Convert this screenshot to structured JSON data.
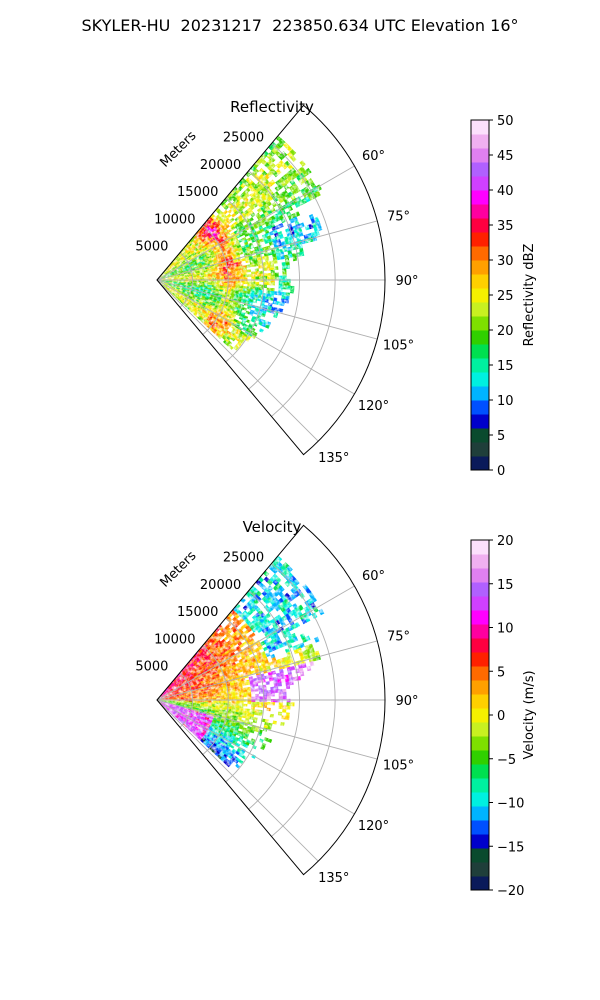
{
  "figure": {
    "title": "SKYLER-HU  20231217  223850.634 UTC Elevation 16°"
  },
  "chart_data": [
    {
      "type": "heatmap",
      "projection": "polar-sector",
      "title": "Reflectivity",
      "radial_label": "Meters",
      "radial_ticks": [
        5000,
        10000,
        15000,
        20000,
        25000
      ],
      "r_max": 32000,
      "angle_range_deg": [
        40,
        140
      ],
      "angle_ticks": [
        "60°",
        "75°",
        "90°",
        "105°",
        "120°",
        "135°"
      ],
      "angle_tick_values": [
        60,
        75,
        90,
        105,
        120,
        135
      ],
      "data_extent_deg": [
        40,
        132
      ],
      "data_extent_m": [
        0,
        26000
      ],
      "colorbar": {
        "label": "Reflectivity dBZ",
        "vmin": 0,
        "vmax": 50,
        "ticks": [
          0,
          5,
          10,
          15,
          20,
          25,
          30,
          35,
          40,
          45,
          50
        ]
      },
      "field": "reflectivity",
      "grid": true
    },
    {
      "type": "heatmap",
      "projection": "polar-sector",
      "title": "Velocity",
      "radial_label": "Meters",
      "radial_ticks": [
        5000,
        10000,
        15000,
        20000,
        25000
      ],
      "r_max": 32000,
      "angle_range_deg": [
        40,
        140
      ],
      "angle_ticks": [
        "60°",
        "75°",
        "90°",
        "105°",
        "120°",
        "135°"
      ],
      "angle_tick_values": [
        60,
        75,
        90,
        105,
        120,
        135
      ],
      "data_extent_deg": [
        40,
        132
      ],
      "data_extent_m": [
        0,
        26000
      ],
      "colorbar": {
        "label": "Velocity (m/s)",
        "vmin": -20,
        "vmax": 20,
        "ticks": [
          -20,
          -15,
          -10,
          -5,
          0,
          5,
          10,
          15,
          20
        ]
      },
      "field": "velocity",
      "grid": true
    }
  ],
  "colors": {
    "grid": "#b0b0b0",
    "frame": "#000000",
    "background": "#ffffff",
    "colormap": [
      "#0a1a5a",
      "#1f3e3a",
      "#0a4a2e",
      "#0000cc",
      "#0050ff",
      "#00b4ff",
      "#00f0e0",
      "#00f0a0",
      "#00e050",
      "#30d000",
      "#7ee000",
      "#c8f020",
      "#f5f000",
      "#ffd000",
      "#ffa000",
      "#ff6a00",
      "#ff2000",
      "#ff0040",
      "#ff00a0",
      "#ff00ff",
      "#d040ff",
      "#b060ff",
      "#e080f0",
      "#f0b0f0",
      "#fce0fc"
    ]
  }
}
